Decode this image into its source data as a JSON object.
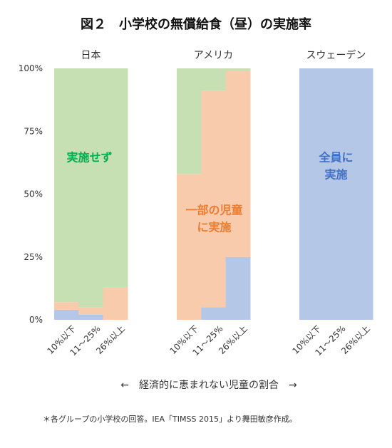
{
  "title": "図２　小学校の無償給食（昼）の実施率",
  "xlabel": "←　経済的に恵まれない児童の割合　→",
  "footnote": "＊各グループの小学校の回答。IEA「TIMSS 2015」より舞田敏彦作成。",
  "colors": {
    "none": "#c6e0b4",
    "partial": "#f8cbad",
    "all": "#b4c7e7",
    "text_none": "#00b050",
    "text_partial": "#ed7d31",
    "text_all": "#4472c4"
  },
  "chart_data": {
    "type": "bar",
    "stacked": true,
    "yticks": [
      "0%",
      "25%",
      "50%",
      "75%",
      "100%"
    ],
    "ylim": [
      0,
      100
    ],
    "grid": false,
    "groups": [
      {
        "name": "日本",
        "categories": [
          "10%以下",
          "11～25%",
          "26%以上"
        ],
        "all": [
          4,
          2,
          0
        ],
        "partial": [
          3,
          3,
          13
        ],
        "none": [
          93,
          95,
          87
        ]
      },
      {
        "name": "アメリカ",
        "categories": [
          "10%以下",
          "11～25%",
          "26%以上"
        ],
        "all": [
          0,
          5,
          25
        ],
        "partial": [
          58,
          86,
          74
        ],
        "none": [
          42,
          9,
          1
        ]
      },
      {
        "name": "スウェーデン",
        "categories": [
          "10%以下",
          "11～25%",
          "26%以上"
        ],
        "all": [
          100,
          100,
          100
        ],
        "partial": [
          0,
          0,
          0
        ],
        "none": [
          0,
          0,
          0
        ]
      }
    ],
    "annotations": {
      "none": [
        "実施せず"
      ],
      "partial": [
        "一部の児童",
        "に実施"
      ],
      "all": [
        "全員に",
        "実施"
      ]
    }
  }
}
